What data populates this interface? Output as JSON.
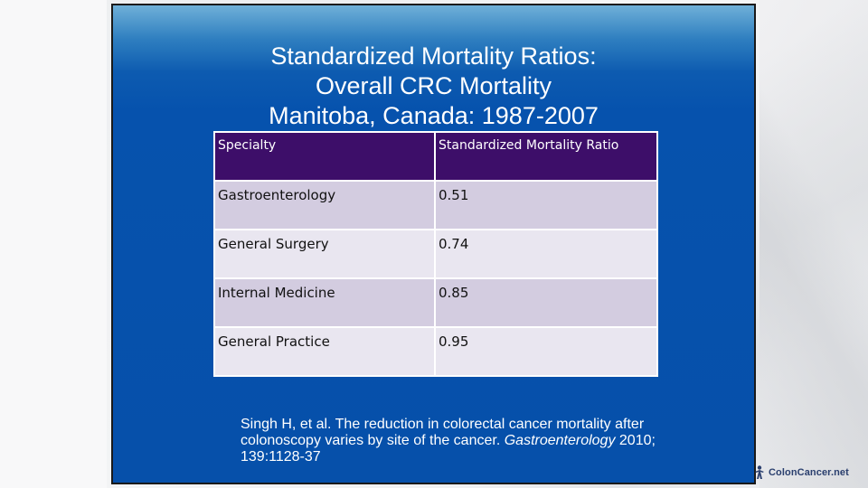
{
  "slide": {
    "title_lines": [
      "Standardized Mortality Ratios:",
      "Overall CRC Mortality",
      "Manitoba, Canada: 1987-2007"
    ],
    "table": {
      "headers": [
        "Specialty",
        "Standardized Mortality Ratio"
      ],
      "rows": [
        [
          "Gastroenterology",
          "0.51"
        ],
        [
          "General Surgery",
          "0.74"
        ],
        [
          "Internal Medicine",
          "0.85"
        ],
        [
          "General Practice",
          "0.95"
        ]
      ]
    },
    "citation": {
      "text_before": "Singh H, et al. The reduction in colorectal cancer mortality after colonoscopy varies by site of the cancer.  ",
      "journal": "Gastroenterology",
      "text_after": " 2010; 139:1128-37"
    }
  },
  "branding": {
    "logo_text": "ColonCancer.net",
    "logo_icon": "ribbon-figure-icon"
  },
  "colors": {
    "slide_blue": "#0650aa",
    "header_purple": "#3d0e69",
    "row_odd": "#d3cce0",
    "row_even": "#e9e6f0"
  }
}
